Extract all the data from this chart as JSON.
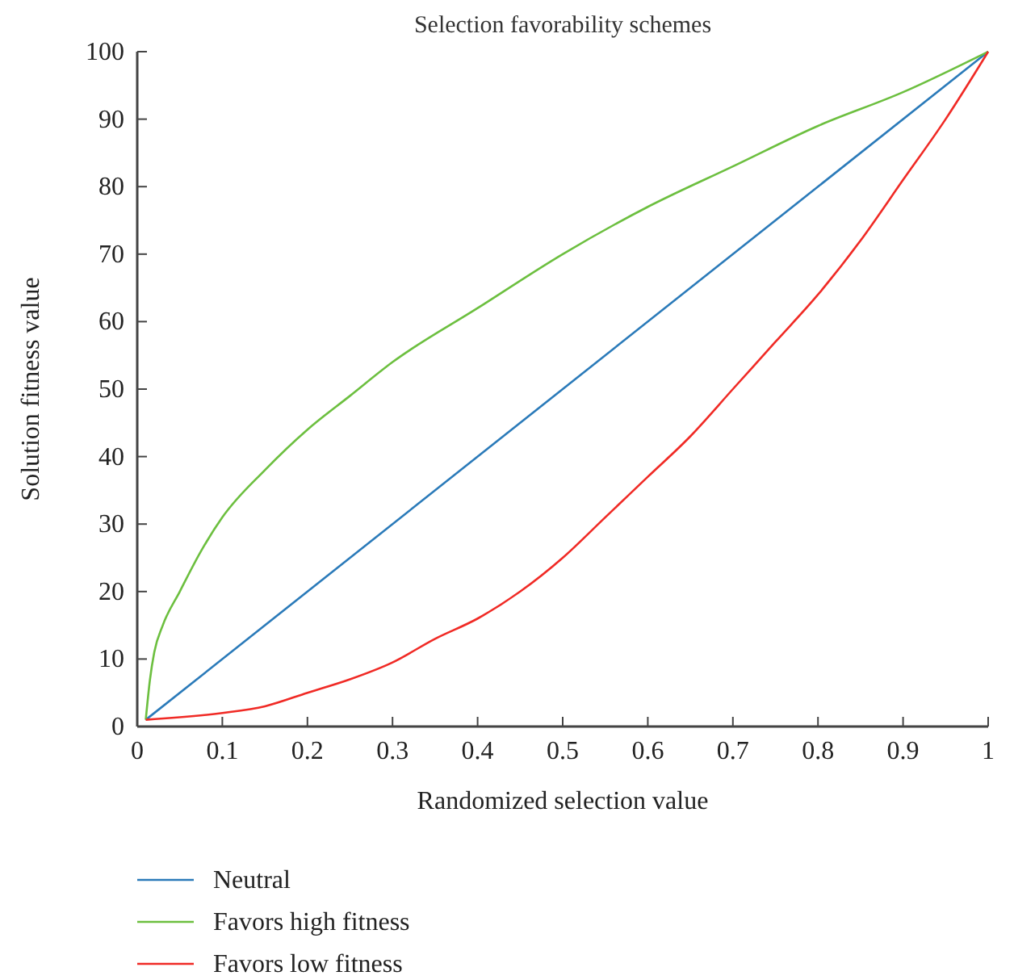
{
  "chart_data": {
    "type": "line",
    "title": "Selection favorability schemes",
    "xlabel": "Randomized selection value",
    "ylabel": "Solution fitness value",
    "xlim": [
      0,
      1
    ],
    "ylim": [
      0,
      100
    ],
    "xticks": [
      0,
      0.1,
      0.2,
      0.3,
      0.4,
      0.5,
      0.6,
      0.7,
      0.8,
      0.9,
      1
    ],
    "yticks": [
      0,
      10,
      20,
      30,
      40,
      50,
      60,
      70,
      80,
      90,
      100
    ],
    "grid": false,
    "legend": "bottom",
    "marker": "none",
    "line_style": "solid",
    "series": [
      {
        "name": "Neutral",
        "color": "#2a7ab9",
        "x": [
          0.01,
          1
        ],
        "values": [
          1,
          100
        ]
      },
      {
        "name": "Favors high fitness",
        "color": "#6cbf3f",
        "x": [
          0.01,
          0.015,
          0.02,
          0.03,
          0.05,
          0.075,
          0.1,
          0.15,
          0.2,
          0.25,
          0.3,
          0.4,
          0.5,
          0.6,
          0.7,
          0.8,
          0.9,
          1
        ],
        "values": [
          1,
          7,
          11,
          15,
          20,
          26,
          31,
          38,
          44,
          49,
          54,
          62,
          70,
          77,
          83,
          89,
          94,
          100
        ]
      },
      {
        "name": "Favors low fitness",
        "color": "#f02a25",
        "x": [
          0.01,
          0.1,
          0.15,
          0.2,
          0.25,
          0.3,
          0.35,
          0.4,
          0.45,
          0.5,
          0.55,
          0.6,
          0.65,
          0.7,
          0.75,
          0.8,
          0.85,
          0.9,
          0.95,
          1
        ],
        "values": [
          1,
          2,
          3,
          5,
          7,
          9.5,
          13,
          16,
          20,
          25,
          31,
          37,
          43,
          50,
          57,
          64,
          72,
          81,
          90,
          100
        ]
      }
    ]
  }
}
